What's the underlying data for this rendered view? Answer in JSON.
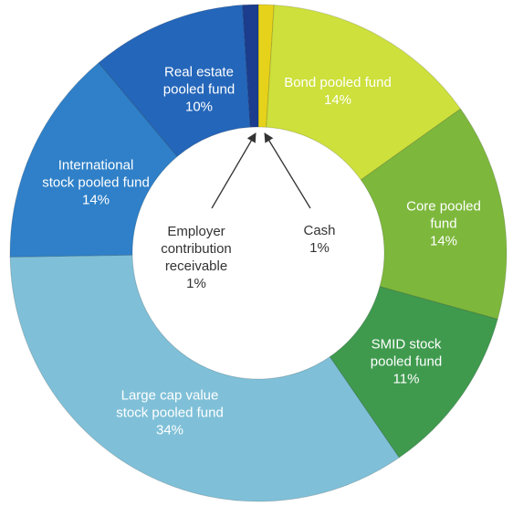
{
  "chart_data": {
    "type": "donut",
    "categories": [
      "Cash",
      "Bond pooled fund",
      "Core pooled fund",
      "SMID stock pooled fund",
      "Large cap value stock pooled fund",
      "International stock pooled fund",
      "Real estate pooled fund",
      "Employer contribution receivable"
    ],
    "values": [
      1,
      14,
      14,
      11,
      34,
      14,
      10,
      1
    ],
    "value_labels": [
      "1%",
      "14%",
      "14%",
      "11%",
      "34%",
      "14%",
      "10%",
      "1%"
    ],
    "colors": [
      "#e6d21a",
      "#cde03c",
      "#7db83c",
      "#3f9a4e",
      "#7fc0d8",
      "#2f80c8",
      "#2466ba",
      "#1c3d8e"
    ]
  }
}
